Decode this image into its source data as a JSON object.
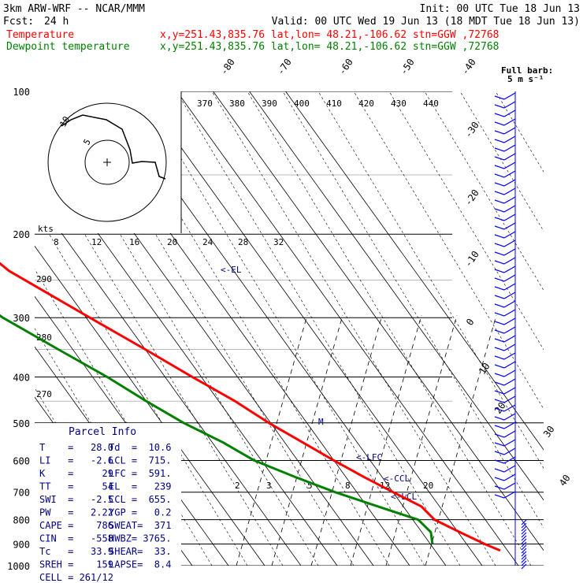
{
  "header": {
    "model": "3km ARW-WRF -- NCAR/MMM",
    "init": "Init: 00 UTC Tue 18 Jun 13",
    "fcst_label": "Fcst:",
    "fcst_value": "24 h",
    "valid": "Valid: 00 UTC Wed 19 Jun 13 (18 MDT Tue 18 Jun 13)",
    "temp_label": "Temperature",
    "temp_info": "x,y=251.43,835.76   lat,lon= 48.21,-106.62  stn=GGW ,72768",
    "dew_label": "Dewpoint temperature",
    "dew_info": "x,y=251.43,835.76   lat,lon= 48.21,-106.62  stn=GGW ,72768"
  },
  "colors": {
    "temperature": "#ff0000",
    "dewpoint": "#008000",
    "parcel_text": "#000080",
    "wind_barbs": "#0000ff"
  },
  "barb_legend": {
    "line1": "Full barb:",
    "line2": "5 m s⁻¹"
  },
  "hodograph": {
    "ring_labels": [
      "5",
      "10"
    ],
    "u_labels": [
      "8",
      "12",
      "16",
      "20",
      "24",
      "28",
      "32"
    ],
    "units": "kts"
  },
  "theta_e_labels": [
    "370",
    "380",
    "390",
    "400",
    "410",
    "420",
    "430",
    "440"
  ],
  "theta_labels": [
    "290",
    "280",
    "270"
  ],
  "mixing_ratio_labels": [
    "2",
    "3",
    "5",
    "8",
    "12",
    "20"
  ],
  "parcel_info": {
    "title": "Parcel Info",
    "rows": [
      [
        "T    =   28.0",
        "Td  =  10.6"
      ],
      [
        "LI   =   -2.6",
        "LCL =  715."
      ],
      [
        "K    =     29",
        "LFC =  591."
      ],
      [
        "TT   =     54",
        "EL  =   239"
      ],
      [
        "SWI  =   -2.5",
        "CCL =  655."
      ],
      [
        "PW   =   2.22",
        "YGP =   0.2"
      ],
      [
        "CAPE =    786",
        "SWEAT=  371"
      ],
      [
        "CIN  =   -558",
        "HWBZ= 3765."
      ],
      [
        "Tc   =   33.9",
        "SHEAR=  33."
      ],
      [
        "SREH =    159",
        "LAPSE=  8.4"
      ],
      [
        "CELL = 261/12",
        ""
      ]
    ]
  },
  "level_markers": [
    "<-EL",
    "<-LFC",
    "<-CCL",
    "<-LCL",
    "M"
  ],
  "chart_data": {
    "type": "line",
    "title": "",
    "xlabel": "",
    "ylabel": "",
    "pressure_ticks": [
      100,
      200,
      300,
      400,
      500,
      600,
      700,
      800,
      900,
      1000
    ],
    "temperature_ticks": [
      -80,
      -70,
      -60,
      -50,
      -40,
      -30,
      -20,
      -10,
      0,
      10,
      20,
      30,
      40
    ],
    "skew_deg_per_hPa_log": "skew-T log-p",
    "series": [
      {
        "name": "Temperature",
        "points": [
          {
            "p": 929,
            "t": 28.0
          },
          {
            "p": 900,
            "t": 25.0
          },
          {
            "p": 850,
            "t": 20.5
          },
          {
            "p": 800,
            "t": 16.0
          },
          {
            "p": 750,
            "t": 15.0
          },
          {
            "p": 700,
            "t": 10.0
          },
          {
            "p": 650,
            "t": 5.0
          },
          {
            "p": 600,
            "t": 0.0
          },
          {
            "p": 550,
            "t": -5.0
          },
          {
            "p": 500,
            "t": -10.5
          },
          {
            "p": 450,
            "t": -15.5
          },
          {
            "p": 400,
            "t": -22.5
          },
          {
            "p": 350,
            "t": -30.0
          },
          {
            "p": 300,
            "t": -39.0
          },
          {
            "p": 270,
            "t": -45.0
          },
          {
            "p": 239,
            "t": -52.0
          },
          {
            "p": 215,
            "t": -55.0
          },
          {
            "p": 190,
            "t": -57.0
          },
          {
            "p": 170,
            "t": -57.0
          },
          {
            "p": 150,
            "t": -57.5
          },
          {
            "p": 130,
            "t": -60.0
          },
          {
            "p": 115,
            "t": -59.5
          },
          {
            "p": 100,
            "t": -59.0
          }
        ]
      },
      {
        "name": "Dewpoint temperature",
        "points": [
          {
            "p": 900,
            "t": 10.6
          },
          {
            "p": 850,
            "t": 12.5
          },
          {
            "p": 800,
            "t": 11.5
          },
          {
            "p": 750,
            "t": 3.0
          },
          {
            "p": 700,
            "t": -6.0
          },
          {
            "p": 650,
            "t": -14.0
          },
          {
            "p": 600,
            "t": -22.0
          },
          {
            "p": 550,
            "t": -27.0
          },
          {
            "p": 500,
            "t": -34.0
          },
          {
            "p": 450,
            "t": -40.0
          },
          {
            "p": 400,
            "t": -46.0
          },
          {
            "p": 350,
            "t": -54.0
          },
          {
            "p": 300,
            "t": -63.0
          },
          {
            "p": 250,
            "t": -70.0
          },
          {
            "p": 200,
            "t": -77.0
          },
          {
            "p": 170,
            "t": -80.0
          },
          {
            "p": 140,
            "t": -82.0
          },
          {
            "p": 120,
            "t": -85.0
          },
          {
            "p": 100,
            "t": -90.0
          }
        ]
      }
    ],
    "grid": true,
    "legend": "top-left"
  }
}
